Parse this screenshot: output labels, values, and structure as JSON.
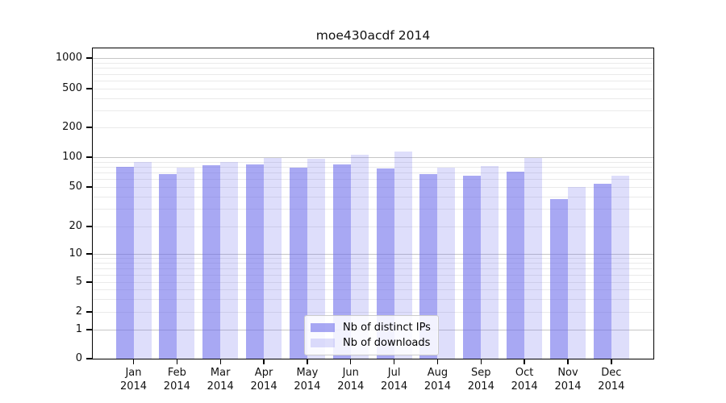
{
  "chart_data": {
    "type": "bar",
    "title": "moe430acdf 2014",
    "categories": [
      "Jan 2014",
      "Feb 2014",
      "Mar 2014",
      "Apr 2014",
      "May 2014",
      "Jun 2014",
      "Jul 2014",
      "Aug 2014",
      "Sep 2014",
      "Oct 2014",
      "Nov 2014",
      "Dec 2014"
    ],
    "x_tick_line1": [
      "Jan",
      "Feb",
      "Mar",
      "Apr",
      "May",
      "Jun",
      "Jul",
      "Aug",
      "Sep",
      "Oct",
      "Nov",
      "Dec"
    ],
    "x_tick_line2": "2014",
    "series": [
      {
        "name": "Nb of distinct IPs",
        "color": "rgba(105,105,235,0.58)",
        "values": [
          80,
          68,
          83,
          85,
          79,
          85,
          77,
          68,
          65,
          72,
          38,
          54
        ]
      },
      {
        "name": "Nb of downloads",
        "color": "rgba(105,105,235,0.22)",
        "values": [
          90,
          78,
          89,
          99,
          96,
          106,
          115,
          78,
          81,
          99,
          50,
          65
        ]
      }
    ],
    "y_axis": {
      "scale": "symlog",
      "tick_values": [
        0,
        1,
        2,
        5,
        10,
        20,
        50,
        100,
        200,
        500,
        1000
      ],
      "tick_labels": [
        "0",
        "1",
        "2",
        "5",
        "10",
        "20",
        "50",
        "100",
        "200",
        "500",
        "1000"
      ],
      "range": [
        0,
        1270
      ]
    },
    "grid": {
      "enabled": true,
      "major_color": "#c6c6c6",
      "minor_color": "#eaeaea"
    },
    "legend": {
      "position": "lower center",
      "items": [
        "Nb of distinct IPs",
        "Nb of downloads"
      ]
    }
  }
}
